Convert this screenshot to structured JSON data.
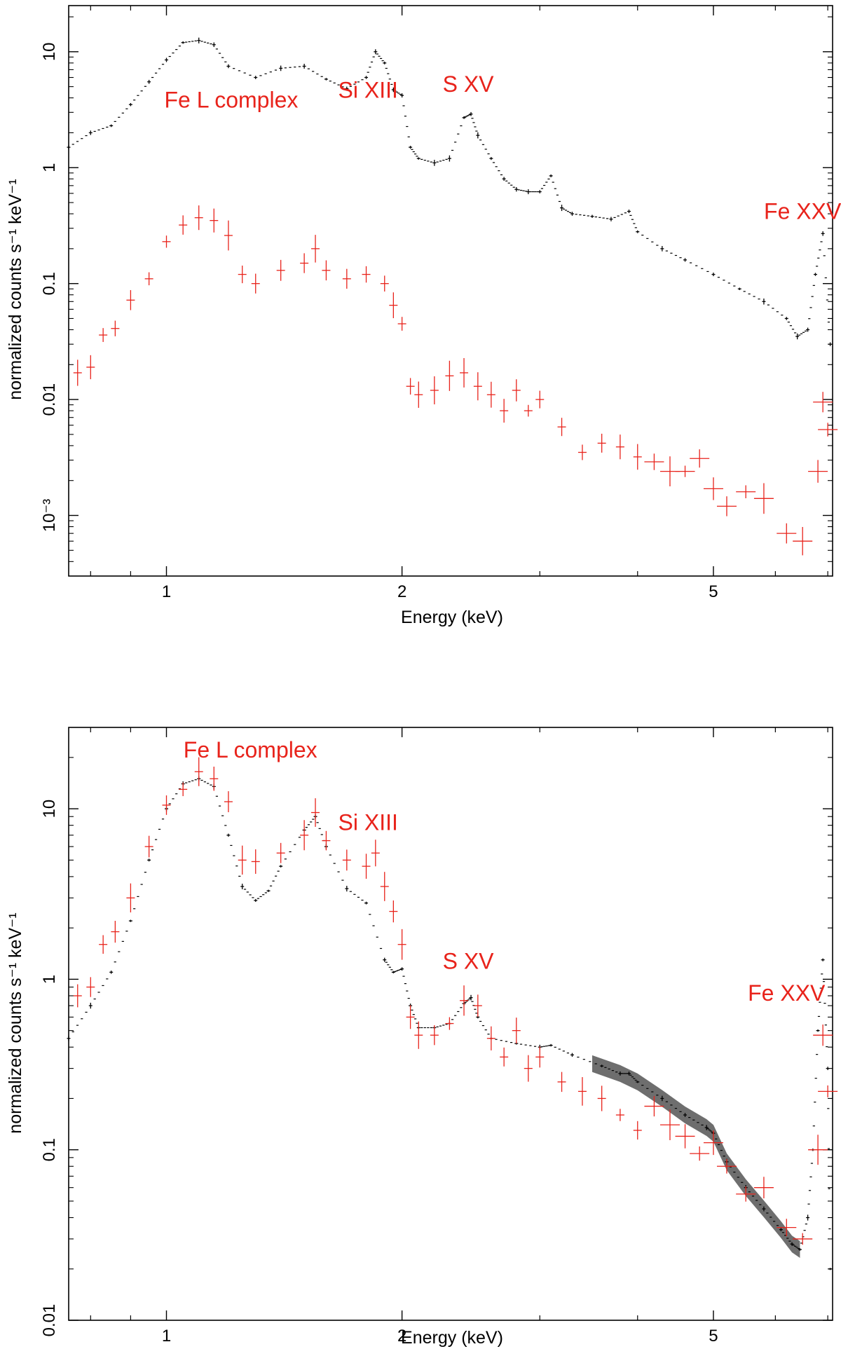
{
  "chart_data": [
    {
      "type": "scatter",
      "panel": "top",
      "title": "",
      "xlabel": "Energy (keV)",
      "ylabel": "normalized counts s⁻¹ keV⁻¹",
      "xscale": "log",
      "yscale": "log",
      "xlim": [
        0.75,
        7.1
      ],
      "ylim": [
        0.0003,
        25
      ],
      "x_ticks": [
        {
          "value": 1,
          "label": "1"
        },
        {
          "value": 2,
          "label": "2"
        },
        {
          "value": 5,
          "label": "5"
        }
      ],
      "y_ticks": [
        {
          "value": 0.001,
          "label": "10⁻³"
        },
        {
          "value": 0.01,
          "label": "0.01"
        },
        {
          "value": 0.1,
          "label": "0.1"
        },
        {
          "value": 1,
          "label": "1"
        },
        {
          "value": 10,
          "label": "10"
        }
      ],
      "annotations": [
        {
          "text": "Fe L complex",
          "x": 1.21,
          "y": 3.3
        },
        {
          "text": "Si XIII",
          "x": 1.81,
          "y": 4.0
        },
        {
          "text": "S XV",
          "x": 2.43,
          "y": 4.5
        },
        {
          "text": "Fe XXV",
          "x": 6.5,
          "y": 0.36
        }
      ],
      "series": [
        {
          "name": "black",
          "color": "#000000",
          "x": [
            0.75,
            0.8,
            0.85,
            0.9,
            0.95,
            1.0,
            1.05,
            1.1,
            1.15,
            1.2,
            1.3,
            1.4,
            1.5,
            1.6,
            1.7,
            1.8,
            1.85,
            1.9,
            1.95,
            2.0,
            2.05,
            2.1,
            2.2,
            2.3,
            2.4,
            2.45,
            2.5,
            2.6,
            2.7,
            2.8,
            2.9,
            3.0,
            3.1,
            3.2,
            3.3,
            3.5,
            3.7,
            3.9,
            4.0,
            4.3,
            4.6,
            5.0,
            5.4,
            5.8,
            6.2,
            6.4,
            6.6,
            6.75,
            6.9,
            7.05
          ],
          "y": [
            1.5,
            2.0,
            2.3,
            3.5,
            5.5,
            8.5,
            12,
            12.5,
            11.5,
            7.5,
            6.0,
            7.2,
            7.5,
            5.8,
            4.8,
            6.0,
            10,
            8.0,
            4.7,
            4.2,
            1.5,
            1.2,
            1.1,
            1.2,
            2.7,
            2.9,
            1.9,
            1.2,
            0.8,
            0.65,
            0.62,
            0.62,
            0.85,
            0.45,
            0.4,
            0.38,
            0.36,
            0.42,
            0.28,
            0.2,
            0.16,
            0.12,
            0.09,
            0.07,
            0.05,
            0.035,
            0.04,
            0.12,
            0.27,
            0.03
          ]
        },
        {
          "name": "red",
          "color": "#e8231b",
          "x": [
            0.77,
            0.8,
            0.83,
            0.86,
            0.9,
            0.95,
            1.0,
            1.05,
            1.1,
            1.15,
            1.2,
            1.25,
            1.3,
            1.4,
            1.5,
            1.55,
            1.6,
            1.7,
            1.8,
            1.9,
            1.95,
            2.0,
            2.05,
            2.1,
            2.2,
            2.3,
            2.4,
            2.5,
            2.6,
            2.7,
            2.8,
            2.9,
            3.0,
            3.2,
            3.4,
            3.6,
            3.8,
            4.0,
            4.2,
            4.4,
            4.6,
            4.8,
            5.0,
            5.2,
            5.5,
            5.8,
            6.2,
            6.5,
            6.8,
            6.9,
            7.0
          ],
          "y": [
            0.017,
            0.019,
            0.036,
            0.041,
            0.072,
            0.11,
            0.23,
            0.32,
            0.37,
            0.35,
            0.26,
            0.12,
            0.1,
            0.13,
            0.15,
            0.2,
            0.13,
            0.11,
            0.12,
            0.1,
            0.065,
            0.045,
            0.013,
            0.011,
            0.012,
            0.016,
            0.017,
            0.013,
            0.011,
            0.008,
            0.012,
            0.008,
            0.01,
            0.0058,
            0.0035,
            0.0042,
            0.0039,
            0.0032,
            0.0029,
            0.0024,
            0.0024,
            0.0031,
            0.0017,
            0.0012,
            0.0016,
            0.0014,
            0.0007,
            0.0006,
            0.0024,
            0.0095,
            0.0055
          ]
        }
      ]
    },
    {
      "type": "scatter",
      "panel": "bottom",
      "title": "",
      "xlabel": "Energy (keV)",
      "ylabel": "normalized counts s⁻¹ keV⁻¹",
      "xscale": "log",
      "yscale": "log",
      "xlim": [
        0.75,
        7.1
      ],
      "ylim": [
        0.01,
        30
      ],
      "x_ticks": [
        {
          "value": 1,
          "label": "1"
        },
        {
          "value": 2,
          "label": "2"
        },
        {
          "value": 5,
          "label": "5"
        }
      ],
      "y_ticks": [
        {
          "value": 0.01,
          "label": "0.01"
        },
        {
          "value": 0.1,
          "label": "0.1"
        },
        {
          "value": 1,
          "label": "1"
        },
        {
          "value": 10,
          "label": "10"
        }
      ],
      "annotations": [
        {
          "text": "Fe L complex",
          "x": 1.28,
          "y": 20
        },
        {
          "text": "Si XIII",
          "x": 1.81,
          "y": 7.5
        },
        {
          "text": "S XV",
          "x": 2.43,
          "y": 1.15
        },
        {
          "text": "Fe XXV",
          "x": 6.2,
          "y": 0.75
        }
      ],
      "series": [
        {
          "name": "black",
          "color": "#000000",
          "x": [
            0.75,
            0.8,
            0.85,
            0.9,
            0.95,
            1.0,
            1.05,
            1.1,
            1.15,
            1.2,
            1.25,
            1.3,
            1.35,
            1.4,
            1.5,
            1.55,
            1.6,
            1.7,
            1.8,
            1.9,
            1.95,
            2.0,
            2.05,
            2.1,
            2.2,
            2.3,
            2.4,
            2.45,
            2.5,
            2.6,
            2.8,
            3.0,
            3.1,
            3.3,
            3.6,
            3.8,
            3.9,
            4.0,
            4.3,
            4.6,
            4.9,
            5.0,
            5.2,
            5.5,
            5.8,
            6.1,
            6.3,
            6.45,
            6.6,
            6.7,
            6.8,
            6.9,
            7.0,
            7.05
          ],
          "y": [
            0.45,
            0.7,
            1.1,
            2.2,
            5.0,
            10,
            14,
            15,
            13.5,
            7.0,
            3.5,
            2.9,
            3.3,
            4.6,
            7.5,
            9.0,
            6.0,
            3.4,
            2.8,
            1.3,
            1.1,
            1.15,
            0.7,
            0.52,
            0.52,
            0.55,
            0.72,
            0.78,
            0.6,
            0.45,
            0.42,
            0.4,
            0.41,
            0.36,
            0.31,
            0.28,
            0.28,
            0.25,
            0.2,
            0.16,
            0.135,
            0.125,
            0.085,
            0.06,
            0.045,
            0.034,
            0.028,
            0.026,
            0.04,
            0.1,
            0.5,
            1.3,
            0.3,
            0.02
          ]
        },
        {
          "name": "red",
          "color": "#e8231b",
          "x": [
            0.77,
            0.8,
            0.83,
            0.86,
            0.9,
            0.95,
            1.0,
            1.05,
            1.1,
            1.15,
            1.2,
            1.25,
            1.3,
            1.4,
            1.5,
            1.55,
            1.6,
            1.7,
            1.8,
            1.85,
            1.9,
            1.95,
            2.0,
            2.05,
            2.1,
            2.2,
            2.3,
            2.4,
            2.5,
            2.6,
            2.7,
            2.8,
            2.9,
            3.0,
            3.2,
            3.4,
            3.6,
            3.8,
            4.0,
            4.2,
            4.4,
            4.6,
            4.8,
            5.0,
            5.2,
            5.5,
            5.8,
            6.2,
            6.5,
            6.8,
            6.9,
            7.0
          ],
          "y": [
            0.8,
            0.9,
            1.6,
            1.9,
            3.0,
            6.0,
            10.5,
            13,
            16.5,
            15,
            11,
            5.0,
            4.9,
            5.5,
            7.0,
            9.5,
            6.5,
            5.0,
            4.6,
            5.5,
            3.5,
            2.5,
            1.6,
            0.6,
            0.47,
            0.47,
            0.55,
            0.75,
            0.7,
            0.45,
            0.35,
            0.5,
            0.3,
            0.35,
            0.25,
            0.22,
            0.2,
            0.16,
            0.13,
            0.18,
            0.14,
            0.12,
            0.095,
            0.11,
            0.08,
            0.055,
            0.06,
            0.035,
            0.03,
            0.1,
            0.47,
            0.22
          ]
        }
      ],
      "model_band": {
        "color": "#555555",
        "x": [
          3.5,
          3.8,
          4.0,
          4.3,
          4.6,
          4.9,
          5.0,
          5.2,
          5.5,
          5.8,
          6.1,
          6.3,
          6.45
        ],
        "y": [
          0.32,
          0.28,
          0.25,
          0.2,
          0.16,
          0.135,
          0.125,
          0.085,
          0.06,
          0.045,
          0.034,
          0.028,
          0.026
        ]
      }
    }
  ]
}
